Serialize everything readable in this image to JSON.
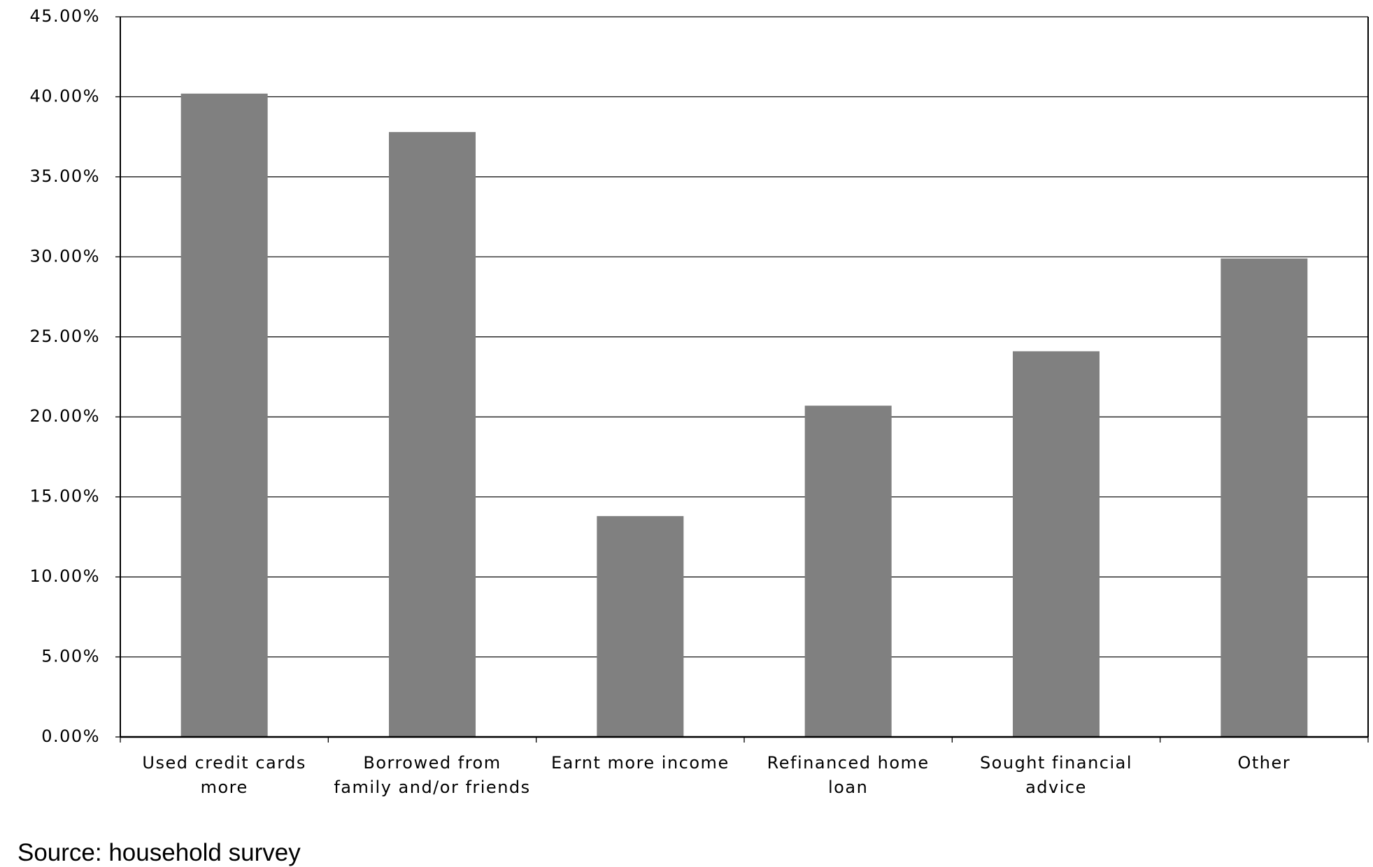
{
  "chart_data": {
    "type": "bar",
    "categories": [
      "Used credit cards\nmore",
      "Borrowed from\nfamily and/or friends",
      "Earnt more income",
      "Refinanced home\nloan",
      "Sought financial\nadvice",
      "Other"
    ],
    "values": [
      40.2,
      37.8,
      13.8,
      20.7,
      24.1,
      29.9
    ],
    "color": "#808080",
    "ylim": [
      0,
      45
    ],
    "yticks": [
      {
        "value": 0,
        "label": "0.00%"
      },
      {
        "value": 5,
        "label": "5.00%"
      },
      {
        "value": 10,
        "label": "10.00%"
      },
      {
        "value": 15,
        "label": "15.00%"
      },
      {
        "value": 20,
        "label": "20.00%"
      },
      {
        "value": 25,
        "label": "25.00%"
      },
      {
        "value": 30,
        "label": "30.00%"
      },
      {
        "value": 35,
        "label": "35.00%"
      },
      {
        "value": 40,
        "label": "40.00%"
      },
      {
        "value": 45,
        "label": "45.00%"
      }
    ],
    "grid": true,
    "source": "Source: household survey"
  }
}
